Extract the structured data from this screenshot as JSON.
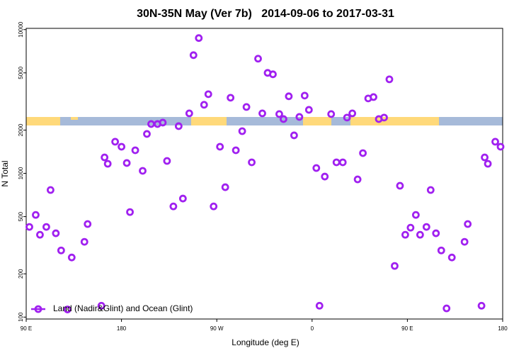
{
  "chart_data": {
    "type": "scatter",
    "title": "30N-35N May (Ver 7b)   2014-09-06 to 2017-03-31",
    "xlabel": "Longitude (deg E)",
    "ylabel": "N Total",
    "log_y": true,
    "legend": "lower left",
    "xlim": [
      90,
      540
    ],
    "ylim": [
      97,
      10200
    ],
    "xticks": [
      {
        "value": 90,
        "label": "90 E"
      },
      180,
      {
        "value": 270,
        "label": "90 W"
      },
      {
        "value": 360,
        "label": "0"
      },
      {
        "value": 450,
        "label": "90 E"
      },
      {
        "value": 540,
        "label": "180"
      }
    ],
    "yticks": [
      100,
      200,
      500,
      1000,
      2000,
      5000,
      10000
    ],
    "series": [
      {
        "name": "Land (Nadir&Glint) and Ocean (Glint)",
        "color": "#a020f0",
        "x": [
          93,
          99,
          103,
          109,
          113,
          118,
          123,
          129,
          133,
          145,
          148,
          161,
          164,
          167,
          174,
          180,
          185,
          188,
          193,
          200,
          204,
          208,
          214,
          219,
          223,
          229,
          234,
          238,
          244,
          248,
          253,
          258,
          262,
          267,
          273,
          278,
          283,
          288,
          294,
          298,
          303,
          309,
          313,
          318,
          323,
          329,
          333,
          338,
          343,
          348,
          353,
          357,
          364,
          367,
          372,
          378,
          383,
          389,
          393,
          398,
          403,
          408,
          413,
          418,
          423,
          428,
          433,
          438,
          443,
          448,
          453,
          458,
          462,
          468,
          472,
          477,
          482,
          487,
          492,
          504,
          507,
          520,
          523,
          526,
          533,
          538
        ],
        "values": [
          424,
          514,
          374,
          424,
          766,
          383,
          291,
          113,
          260,
          334,
          444,
          120,
          1291,
          1166,
          1660,
          1532,
          1180,
          538,
          1447,
          1041,
          1880,
          2204,
          2204,
          2254,
          1220,
          589,
          2130,
          668,
          2614,
          6640,
          8730,
          3000,
          3554,
          589,
          1532,
          801,
          3358,
          1447,
          1966,
          2896,
          1193,
          6276,
          2614,
          5000,
          4886,
          2585,
          2386,
          3436,
          1838,
          2469,
          3474,
          2765,
          1089,
          120,
          950,
          2585,
          1193,
          1193,
          2443,
          2614,
          908,
          1383,
          3320,
          3394,
          2386,
          2443,
          4510,
          227,
          820,
          374,
          419,
          514,
          374,
          424,
          766,
          383,
          291,
          115,
          260,
          334,
          444,
          120,
          1291,
          1166,
          1660,
          1532
        ]
      }
    ]
  }
}
